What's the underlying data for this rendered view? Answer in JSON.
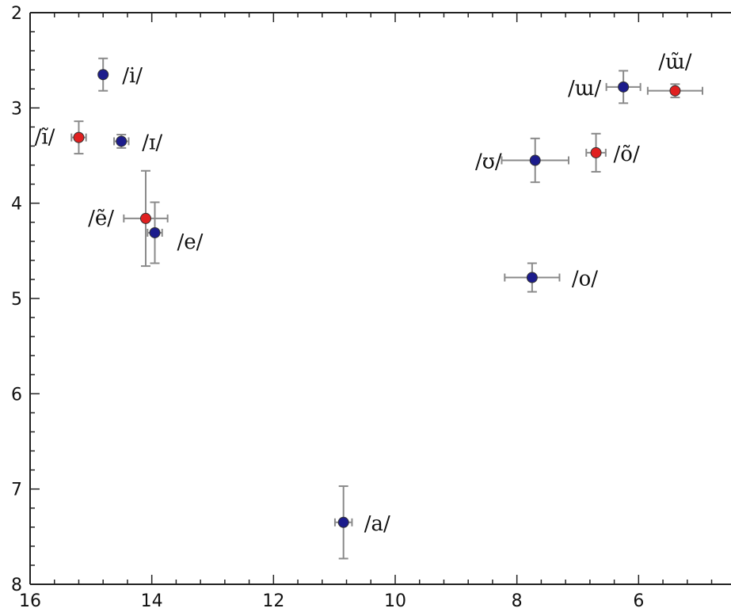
{
  "chart_data": {
    "type": "scatter",
    "title": "",
    "xlabel": "",
    "ylabel": "",
    "xlim": [
      16,
      4
    ],
    "ylim": [
      8,
      2
    ],
    "x_ticks": [
      16,
      14,
      12,
      10,
      8,
      6
    ],
    "y_ticks": [
      2,
      3,
      4,
      5,
      6,
      7,
      8
    ],
    "grid": false,
    "series": [
      {
        "color": "#1c1c8c",
        "points": [
          {
            "label": "/i/",
            "x": 14.8,
            "y": 2.65,
            "xerr": 0,
            "yerr": 0.17
          },
          {
            "label": "/ɪ/",
            "x": 14.5,
            "y": 3.35,
            "xerr": 0.12,
            "yerr": 0.07
          },
          {
            "label": "/e/",
            "x": 13.95,
            "y": 4.31,
            "xerr": 0.12,
            "yerr": 0.32
          },
          {
            "label": "/a/",
            "x": 10.85,
            "y": 7.35,
            "xerr": 0.14,
            "yerr": 0.38
          },
          {
            "label": "/ɯ/",
            "x": 6.25,
            "y": 2.78,
            "xerr": 0.28,
            "yerr": 0.17
          },
          {
            "label": "/ʊ/",
            "x": 7.7,
            "y": 3.55,
            "xerr": 0.55,
            "yerr": 0.23
          },
          {
            "label": "/o/",
            "x": 7.75,
            "y": 4.78,
            "xerr": 0.45,
            "yerr": 0.15
          }
        ]
      },
      {
        "color": "#e02020",
        "points": [
          {
            "label": "/ĩ/",
            "x": 15.2,
            "y": 3.31,
            "xerr": 0.12,
            "yerr": 0.17
          },
          {
            "label": "/ẽ/",
            "x": 14.1,
            "y": 4.16,
            "xerr": 0.36,
            "yerr": 0.5
          },
          {
            "label": "/õ/",
            "x": 6.7,
            "y": 3.47,
            "xerr": 0.16,
            "yerr": 0.2
          },
          {
            "label": "/ɯ̃/",
            "x": 5.4,
            "y": 2.82,
            "xerr": 0.45,
            "yerr": 0.07
          }
        ]
      }
    ]
  }
}
